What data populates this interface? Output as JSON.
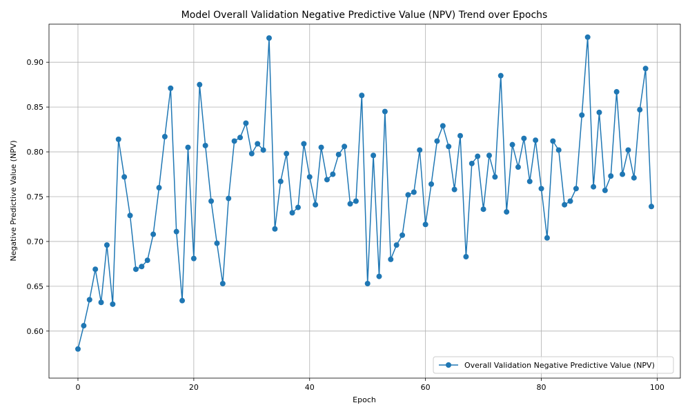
{
  "chart_data": {
    "type": "line",
    "title": "Model Overall Validation Negative Predictive Value (NPV) Trend over Epochs",
    "xlabel": "Epoch",
    "ylabel": "Negative Predictive Value (NPV)",
    "xlim": [
      -5,
      104
    ],
    "ylim": [
      0.5475,
      0.9425
    ],
    "xticks": [
      0,
      20,
      40,
      60,
      80,
      100
    ],
    "xtick_labels": [
      "0",
      "20",
      "40",
      "60",
      "80",
      "100"
    ],
    "yticks": [
      0.6,
      0.65,
      0.7,
      0.75,
      0.8,
      0.85,
      0.9
    ],
    "ytick_labels": [
      "0.60",
      "0.65",
      "0.70",
      "0.75",
      "0.80",
      "0.85",
      "0.90"
    ],
    "grid": true,
    "legend_position": "lower-right",
    "series": [
      {
        "name": "Overall Validation Negative Predictive Value (NPV)",
        "color": "#1f77b4",
        "x": [
          0,
          1,
          2,
          3,
          4,
          5,
          6,
          7,
          8,
          9,
          10,
          11,
          12,
          13,
          14,
          15,
          16,
          17,
          18,
          19,
          20,
          21,
          22,
          23,
          24,
          25,
          26,
          27,
          28,
          29,
          30,
          31,
          32,
          33,
          34,
          35,
          36,
          37,
          38,
          39,
          40,
          41,
          42,
          43,
          44,
          45,
          46,
          47,
          48,
          49,
          50,
          51,
          52,
          53,
          54,
          55,
          56,
          57,
          58,
          59,
          60,
          61,
          62,
          63,
          64,
          65,
          66,
          67,
          68,
          69,
          70,
          71,
          72,
          73,
          74,
          75,
          76,
          77,
          78,
          79,
          80,
          81,
          82,
          83,
          84,
          85,
          86,
          87,
          88,
          89,
          90,
          91,
          92,
          93,
          94,
          95,
          96,
          97,
          98,
          99
        ],
        "values": [
          0.58,
          0.606,
          0.635,
          0.669,
          0.632,
          0.696,
          0.63,
          0.814,
          0.772,
          0.729,
          0.669,
          0.672,
          0.679,
          0.708,
          0.76,
          0.817,
          0.871,
          0.711,
          0.634,
          0.805,
          0.681,
          0.875,
          0.807,
          0.745,
          0.698,
          0.653,
          0.748,
          0.812,
          0.816,
          0.832,
          0.798,
          0.809,
          0.802,
          0.927,
          0.714,
          0.767,
          0.798,
          0.732,
          0.738,
          0.809,
          0.772,
          0.741,
          0.805,
          0.769,
          0.775,
          0.797,
          0.806,
          0.742,
          0.745,
          0.863,
          0.653,
          0.796,
          0.661,
          0.845,
          0.68,
          0.696,
          0.707,
          0.752,
          0.755,
          0.802,
          0.719,
          0.764,
          0.812,
          0.829,
          0.806,
          0.758,
          0.818,
          0.683,
          0.787,
          0.795,
          0.736,
          0.796,
          0.772,
          0.885,
          0.733,
          0.808,
          0.783,
          0.815,
          0.767,
          0.813,
          0.759,
          0.704,
          0.812,
          0.802,
          0.741,
          0.745,
          0.759,
          0.841,
          0.928,
          0.761,
          0.844,
          0.757,
          0.773,
          0.867,
          0.775,
          0.802,
          0.771,
          0.847,
          0.893,
          0.739
        ]
      }
    ]
  }
}
